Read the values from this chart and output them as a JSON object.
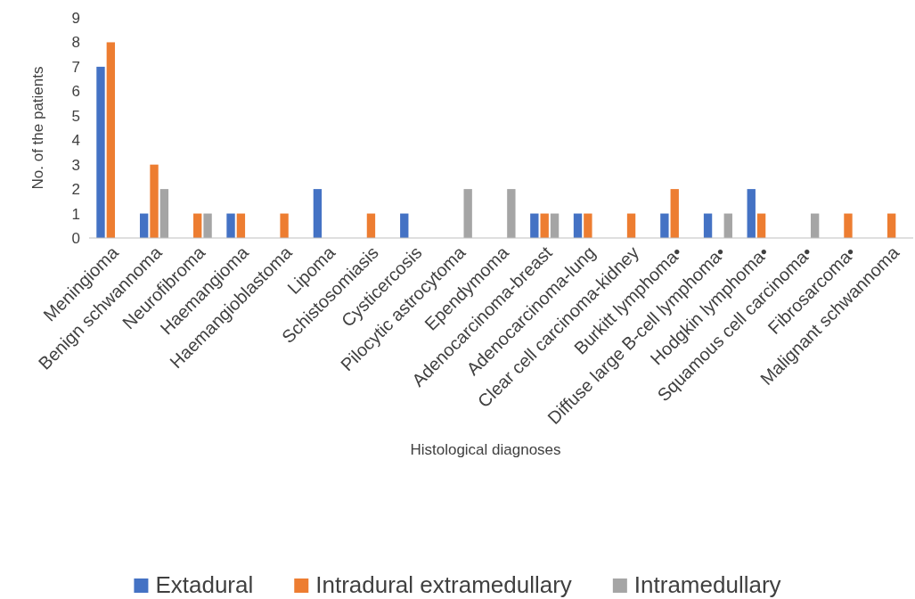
{
  "chart_data": {
    "type": "bar",
    "xlabel": "Histological diagnoses",
    "ylabel": "No. of the patients",
    "categories": [
      "Meningioma",
      "Benign schwannoma",
      "Neurofibroma",
      "Haemangioma",
      "Haemangioblastoma",
      "Lipoma",
      "Schistosomiasis",
      "Cysticercosis",
      "Pilocytic astrocytoma",
      "Ependymoma",
      "Adenocarcinoma-breast",
      "Adenocarcinoma-lung",
      "Clear cell carcinoma-kidney",
      "Burkitt lymphoma•",
      "Diffuse large B-cell lymphoma•",
      "Hodgkin lymphoma•",
      "Squamous cell carcinoma•",
      "Fibrosarcoma•",
      "Malignant schwannoma"
    ],
    "series": [
      {
        "name": "Extadural",
        "color": "#4472c4",
        "values": [
          7,
          1,
          0,
          1,
          0,
          2,
          0,
          1,
          0,
          0,
          1,
          1,
          0,
          1,
          1,
          2,
          0,
          0,
          0
        ]
      },
      {
        "name": "Intradural extramedullary",
        "color": "#ed7d31",
        "values": [
          8,
          3,
          1,
          1,
          1,
          0,
          1,
          0,
          0,
          0,
          1,
          1,
          1,
          2,
          0,
          1,
          0,
          1,
          1
        ]
      },
      {
        "name": "Intramedullary",
        "color": "#a5a5a5",
        "values": [
          0,
          2,
          1,
          0,
          0,
          0,
          0,
          0,
          2,
          2,
          1,
          0,
          0,
          0,
          1,
          0,
          1,
          0,
          0
        ]
      }
    ],
    "ylim": [
      0,
      9
    ],
    "yticks": [
      0,
      1,
      2,
      3,
      4,
      5,
      6,
      7,
      8,
      9
    ],
    "grid": false,
    "legend": "bottom"
  }
}
